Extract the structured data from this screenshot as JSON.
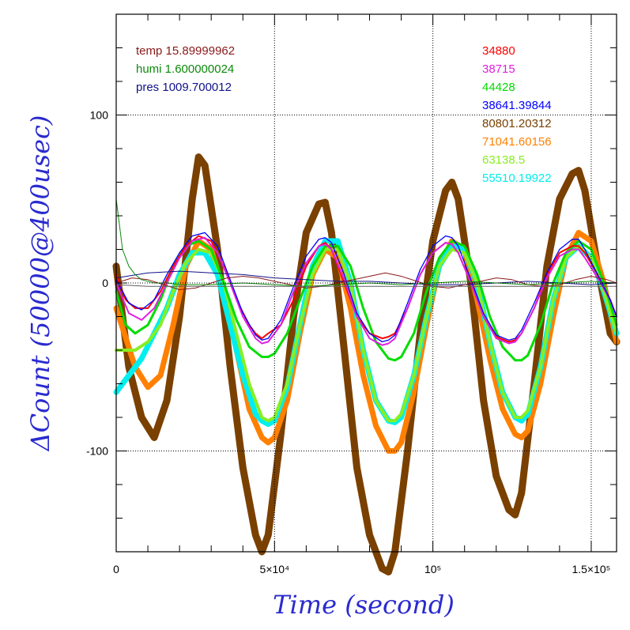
{
  "chart_data": {
    "type": "line",
    "xlabel": "Time (second)",
    "ylabel": "ΔCount (50000@400usec)",
    "xlim": [
      0,
      158000
    ],
    "ylim": [
      -160,
      160
    ],
    "x_ticks": [
      {
        "value": 0,
        "label": "0"
      },
      {
        "value": 50000,
        "label": "5×10⁴"
      },
      {
        "value": 100000,
        "label": "10⁵"
      },
      {
        "value": 150000,
        "label": "1.5×10⁵"
      }
    ],
    "y_ticks": [
      {
        "value": -100,
        "label": "-100"
      },
      {
        "value": 0,
        "label": "0"
      },
      {
        "value": 100,
        "label": "100"
      }
    ],
    "grid": true,
    "legend_left": [
      {
        "name": "temp",
        "value": "15.89999962",
        "color": "#8b1a1a"
      },
      {
        "name": "humi",
        "value": "1.600000024",
        "color": "#0a8a0a"
      },
      {
        "name": "pres",
        "value": "1009.700012",
        "color": "#10108a"
      }
    ],
    "legend_right": [
      {
        "label": "34880",
        "color": "#ff0000"
      },
      {
        "label": "38715",
        "color": "#e020e0"
      },
      {
        "label": "44428",
        "color": "#00dd00"
      },
      {
        "label": "38641.39844",
        "color": "#0000ff"
      },
      {
        "label": "80801.20312",
        "color": "#7a4000"
      },
      {
        "label": "71041.60156",
        "color": "#ff8000"
      },
      {
        "label": "63138.5",
        "color": "#88ee22"
      },
      {
        "label": "55510.19922",
        "color": "#00eeee"
      }
    ],
    "period": 39500,
    "series": [
      {
        "color": "#7a4000",
        "x": [
          0,
          4000,
          8000,
          12000,
          16000,
          20000,
          24000,
          26000,
          28000,
          32000,
          36000,
          40000,
          44000,
          46000,
          48000,
          52000,
          56000,
          60000,
          64000,
          66000,
          68000,
          72000,
          76000,
          80000,
          84000,
          86000,
          88000,
          92000,
          96000,
          100000,
          104000,
          106000,
          108000,
          112000,
          116000,
          120000,
          124000,
          126000,
          128000,
          132000,
          136000,
          140000,
          144000,
          146000,
          148000,
          152000,
          156000,
          158000
        ],
        "y": [
          10,
          -50,
          -80,
          -92,
          -70,
          -20,
          50,
          75,
          70,
          20,
          -50,
          -110,
          -150,
          -160,
          -150,
          -90,
          -20,
          30,
          47,
          48,
          30,
          -40,
          -110,
          -150,
          -170,
          -172,
          -160,
          -100,
          -30,
          25,
          55,
          60,
          50,
          0,
          -70,
          -115,
          -135,
          -138,
          -125,
          -60,
          10,
          50,
          65,
          67,
          55,
          10,
          -30,
          -35
        ],
        "width": 9
      },
      {
        "color": "#ff8000",
        "x": [
          0,
          6000,
          10000,
          14000,
          18000,
          22000,
          26000,
          30000,
          34000,
          38000,
          42000,
          46000,
          48000,
          50000,
          54000,
          58000,
          62000,
          66000,
          70000,
          74000,
          78000,
          82000,
          86000,
          88000,
          90000,
          94000,
          98000,
          102000,
          106000,
          110000,
          114000,
          118000,
          122000,
          126000,
          128000,
          130000,
          134000,
          138000,
          142000,
          146000,
          150000,
          154000,
          158000
        ],
        "y": [
          -15,
          -50,
          -62,
          -55,
          -25,
          10,
          25,
          20,
          -5,
          -40,
          -75,
          -92,
          -95,
          -92,
          -70,
          -30,
          5,
          20,
          15,
          -15,
          -55,
          -85,
          -100,
          -100,
          -95,
          -65,
          -25,
          10,
          25,
          20,
          -10,
          -45,
          -75,
          -90,
          -92,
          -88,
          -60,
          -20,
          15,
          30,
          25,
          0,
          -35
        ],
        "width": 7
      },
      {
        "color": "#00eeee",
        "x": [
          0,
          4000,
          8000,
          12000,
          16000,
          20000,
          24000,
          28000,
          32000,
          36000,
          40000,
          44000,
          46000,
          48000,
          50000,
          54000,
          58000,
          62000,
          66000,
          70000,
          74000,
          78000,
          82000,
          86000,
          88000,
          90000,
          94000,
          98000,
          102000,
          106000,
          110000,
          114000,
          118000,
          122000,
          126000,
          128000,
          130000,
          134000,
          138000,
          142000,
          146000,
          150000,
          154000,
          158000
        ],
        "y": [
          -65,
          -55,
          -45,
          -30,
          -15,
          5,
          18,
          18,
          5,
          -25,
          -55,
          -78,
          -82,
          -84,
          -82,
          -62,
          -25,
          10,
          25,
          25,
          0,
          -40,
          -70,
          -82,
          -83,
          -80,
          -55,
          -20,
          10,
          22,
          20,
          0,
          -35,
          -65,
          -80,
          -82,
          -78,
          -50,
          -10,
          15,
          22,
          15,
          -5,
          -30
        ],
        "width": 7
      },
      {
        "color": "#88ee22",
        "x": [
          0,
          6000,
          10000,
          14000,
          18000,
          22000,
          26000,
          30000,
          34000,
          38000,
          42000,
          46000,
          48000,
          50000,
          54000,
          58000,
          62000,
          66000,
          70000,
          74000,
          78000,
          82000,
          86000,
          88000,
          90000,
          94000,
          98000,
          102000,
          106000,
          110000,
          114000,
          118000,
          122000,
          126000,
          128000,
          130000,
          134000,
          138000,
          142000,
          146000,
          150000,
          154000,
          158000
        ],
        "y": [
          -40,
          -40,
          -35,
          -25,
          -5,
          12,
          20,
          18,
          0,
          -30,
          -60,
          -80,
          -82,
          -80,
          -60,
          -25,
          5,
          20,
          20,
          0,
          -40,
          -70,
          -82,
          -82,
          -78,
          -55,
          -20,
          10,
          20,
          18,
          0,
          -35,
          -65,
          -80,
          -80,
          -76,
          -50,
          -10,
          15,
          22,
          15,
          -5,
          -30
        ],
        "width": 4
      },
      {
        "color": "#00dd00",
        "x": [
          0,
          3000,
          6000,
          10000,
          14000,
          18000,
          22000,
          26000,
          30000,
          34000,
          38000,
          42000,
          46000,
          48000,
          50000,
          54000,
          58000,
          62000,
          66000,
          70000,
          74000,
          78000,
          82000,
          86000,
          88000,
          90000,
          94000,
          98000,
          102000,
          106000,
          110000,
          114000,
          118000,
          122000,
          126000,
          128000,
          130000,
          134000,
          138000,
          142000,
          146000,
          150000,
          154000,
          158000
        ],
        "y": [
          -5,
          -25,
          -30,
          -25,
          -10,
          10,
          22,
          25,
          20,
          0,
          -22,
          -38,
          -44,
          -44,
          -42,
          -30,
          -10,
          10,
          22,
          22,
          10,
          -15,
          -35,
          -45,
          -46,
          -44,
          -30,
          -5,
          15,
          25,
          22,
          5,
          -20,
          -38,
          -46,
          -46,
          -43,
          -25,
          0,
          18,
          25,
          20,
          0,
          -25
        ],
        "width": 3
      },
      {
        "color": "#ff0000",
        "x": [
          0,
          3000,
          6000,
          10000,
          14000,
          18000,
          22000,
          26000,
          30000,
          34000,
          38000,
          42000,
          44000,
          46000,
          48000,
          52000,
          56000,
          60000,
          64000,
          66000,
          68000,
          72000,
          76000,
          80000,
          84000,
          86000,
          88000,
          92000,
          96000,
          100000,
          104000,
          106000,
          108000,
          112000,
          116000,
          120000,
          124000,
          126000,
          128000,
          132000,
          136000,
          140000,
          144000,
          146000,
          148000,
          152000,
          156000,
          158000
        ],
        "y": [
          5,
          -10,
          -15,
          -15,
          -5,
          10,
          22,
          28,
          25,
          10,
          -10,
          -25,
          -30,
          -33,
          -30,
          -25,
          -10,
          10,
          22,
          24,
          20,
          0,
          -20,
          -30,
          -33,
          -32,
          -30,
          -15,
          5,
          18,
          24,
          23,
          18,
          0,
          -20,
          -32,
          -35,
          -34,
          -30,
          -15,
          5,
          18,
          22,
          22,
          18,
          5,
          -10,
          -20
        ],
        "width": 2
      },
      {
        "color": "#e020e0",
        "x": [
          0,
          4000,
          8000,
          12000,
          16000,
          20000,
          24000,
          28000,
          32000,
          36000,
          40000,
          44000,
          46000,
          48000,
          52000,
          56000,
          60000,
          64000,
          66000,
          68000,
          72000,
          76000,
          80000,
          84000,
          86000,
          88000,
          92000,
          96000,
          100000,
          104000,
          106000,
          108000,
          112000,
          116000,
          120000,
          124000,
          126000,
          128000,
          132000,
          136000,
          140000,
          144000,
          146000,
          148000,
          152000,
          156000,
          158000
        ],
        "y": [
          0,
          -18,
          -22,
          -15,
          0,
          15,
          25,
          27,
          18,
          0,
          -20,
          -33,
          -36,
          -35,
          -25,
          -5,
          12,
          22,
          23,
          20,
          2,
          -20,
          -33,
          -37,
          -36,
          -33,
          -15,
          5,
          18,
          24,
          23,
          18,
          0,
          -20,
          -33,
          -36,
          -35,
          -30,
          -15,
          3,
          16,
          20,
          20,
          15,
          3,
          -10,
          -20
        ],
        "width": 2
      },
      {
        "color": "#0000ff",
        "x": [
          0,
          4000,
          8000,
          12000,
          16000,
          20000,
          24000,
          28000,
          32000,
          36000,
          40000,
          44000,
          46000,
          48000,
          52000,
          56000,
          60000,
          64000,
          66000,
          68000,
          72000,
          76000,
          80000,
          84000,
          86000,
          88000,
          92000,
          96000,
          100000,
          104000,
          106000,
          108000,
          112000,
          116000,
          120000,
          124000,
          126000,
          128000,
          132000,
          136000,
          140000,
          144000,
          146000,
          148000,
          152000,
          156000,
          158000
        ],
        "y": [
          2,
          -12,
          -16,
          -10,
          5,
          18,
          28,
          30,
          22,
          2,
          -18,
          -31,
          -34,
          -33,
          -22,
          -2,
          16,
          26,
          27,
          24,
          5,
          -18,
          -30,
          -35,
          -34,
          -31,
          -12,
          8,
          22,
          28,
          27,
          22,
          2,
          -18,
          -31,
          -34,
          -33,
          -28,
          -12,
          6,
          20,
          26,
          26,
          20,
          5,
          -10,
          -20
        ],
        "width": 1.3
      },
      {
        "color": "#10108a",
        "x": [
          0,
          10000,
          20000,
          30000,
          40000,
          50000,
          60000,
          70000,
          80000,
          90000,
          100000,
          110000,
          120000,
          130000,
          140000,
          150000,
          158000
        ],
        "y": [
          3,
          6,
          7,
          6,
          5,
          3,
          2,
          1,
          1,
          0,
          -1,
          -1,
          0,
          1,
          0,
          -1,
          0
        ],
        "width": 1
      },
      {
        "color": "#8b1a1a",
        "x": [
          0,
          5000,
          10000,
          15000,
          20000,
          25000,
          30000,
          35000,
          40000,
          45000,
          50000,
          55000,
          60000,
          65000,
          70000,
          75000,
          80000,
          85000,
          90000,
          95000,
          100000,
          105000,
          110000,
          115000,
          120000,
          125000,
          130000,
          135000,
          140000,
          145000,
          150000,
          155000,
          158000
        ],
        "y": [
          0,
          3,
          2,
          -1,
          -4,
          -3,
          0,
          3,
          4,
          3,
          1,
          -1,
          -3,
          -2,
          0,
          2,
          4,
          6,
          4,
          1,
          -2,
          -3,
          -1,
          1,
          3,
          2,
          -1,
          -2,
          -1,
          2,
          4,
          2,
          0
        ],
        "width": 1
      },
      {
        "color": "#0a8a0a",
        "x": [
          0,
          1000,
          2000,
          4000,
          6000,
          8000,
          12000,
          16000,
          20000,
          30000,
          40000,
          50000,
          60000,
          70000,
          80000,
          90000,
          100000,
          110000,
          120000,
          130000,
          140000,
          150000,
          158000
        ],
        "y": [
          50,
          35,
          20,
          10,
          5,
          2,
          0,
          0,
          -1,
          -1,
          0,
          -1,
          -2,
          -1,
          0,
          -1,
          0,
          1,
          0,
          -1,
          0,
          1,
          0
        ],
        "width": 1
      },
      {
        "color": "#606060",
        "x": [
          0,
          10000,
          20000,
          30000,
          40000,
          50000,
          60000,
          70000,
          80000,
          90000,
          100000,
          110000,
          120000,
          130000,
          140000,
          150000,
          158000
        ],
        "y": [
          -1,
          -2,
          -2,
          -2,
          -2,
          -2,
          -2,
          -2,
          -2,
          -2,
          -2,
          -2,
          -2,
          -2,
          -2,
          -2,
          -2
        ],
        "width": 1
      }
    ]
  }
}
